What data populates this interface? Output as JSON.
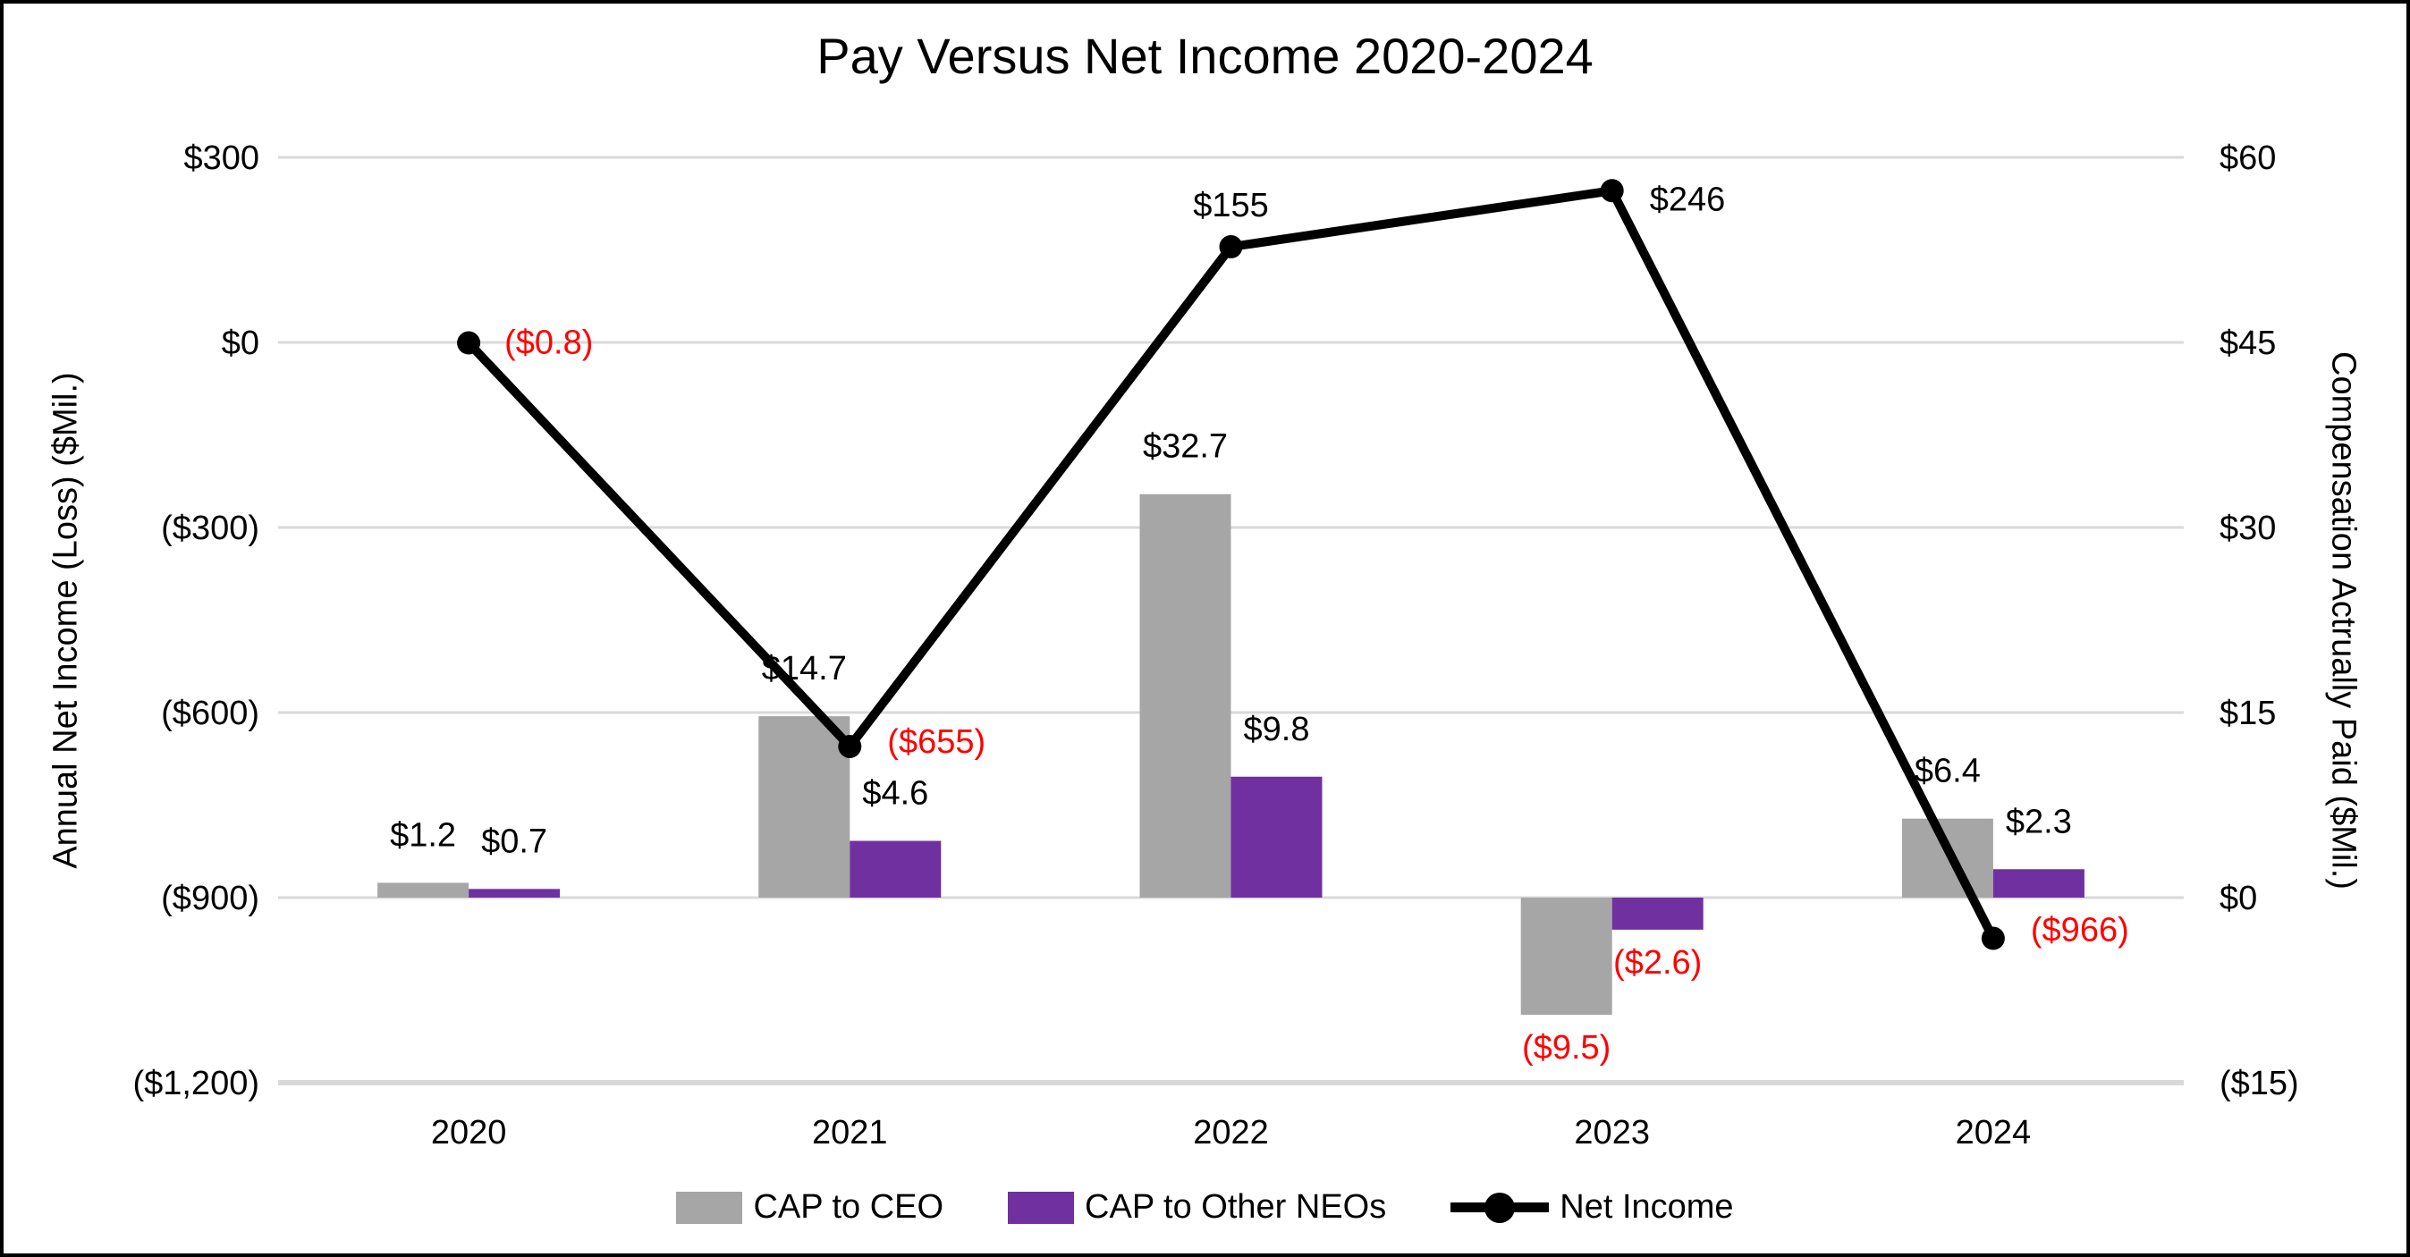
{
  "chart_data": {
    "type": "combo-bar-line",
    "title": "Pay Versus Net Income 2020-2024",
    "categories": [
      "2020",
      "2021",
      "2022",
      "2023",
      "2024"
    ],
    "series": [
      {
        "name": "CAP to CEO",
        "axis": "right",
        "color": "#A6A6A6",
        "values": [
          1.2,
          14.7,
          32.7,
          -9.5,
          6.4
        ],
        "labels": [
          "$1.2",
          "$14.7",
          "$32.7",
          "($9.5)",
          "$6.4"
        ]
      },
      {
        "name": "CAP to Other NEOs",
        "axis": "right",
        "color": "#7030A0",
        "values": [
          0.7,
          4.6,
          9.8,
          -2.6,
          2.3
        ],
        "labels": [
          "$0.7",
          "$4.6",
          "$9.8",
          "($2.6)",
          "$2.3"
        ]
      }
    ],
    "line_series": {
      "name": "Net Income",
      "axis": "left",
      "color": "#000000",
      "values": [
        -0.8,
        -655,
        155,
        246,
        -966
      ],
      "labels": [
        "($0.8)",
        "($655)",
        "$155",
        "$246",
        "($966)"
      ]
    },
    "ylabel_left": "Annual Net Income (Loss) ($Mil.)",
    "ylabel_right": "Compensation Actrually Paid ($Mil.)",
    "y_left": {
      "max": 300,
      "min": -1200,
      "step": 300,
      "tick_labels": [
        "$300",
        "$0",
        "($300)",
        "($600)",
        "($900)",
        "($1,200)"
      ]
    },
    "y_right": {
      "max": 60,
      "min": -15,
      "step": 15,
      "tick_labels": [
        "$60",
        "$45",
        "$30",
        "$15",
        "$0",
        "($15)"
      ]
    },
    "grid_on": true,
    "grid_color": "#D9D9D9",
    "negative_label_color": "#FF0000",
    "positive_label_color": "#000000",
    "legend_position": "bottom"
  }
}
